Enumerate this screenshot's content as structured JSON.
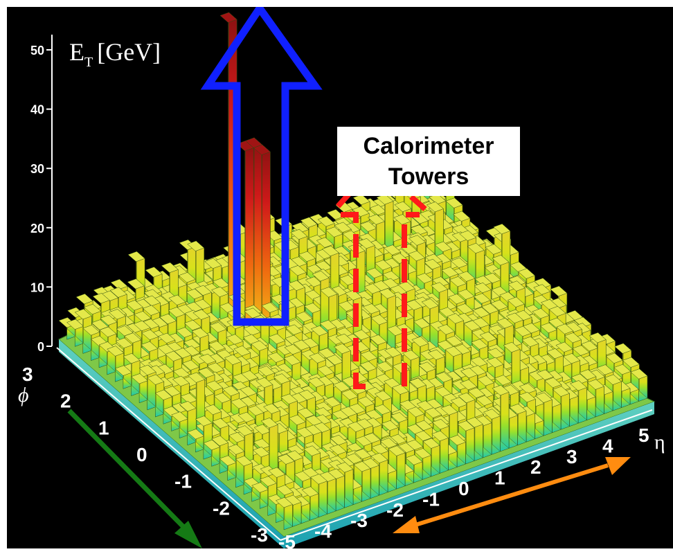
{
  "chart_data": {
    "type": "3d-bar-lego",
    "z_axis": {
      "title_symbol": "E",
      "title_sub": "T",
      "title_unit": "[GeV]",
      "ticks": [
        "50",
        "40",
        "30",
        "20",
        "10",
        "0"
      ],
      "range": [
        0,
        50
      ]
    },
    "phi_axis": {
      "title": "ϕ",
      "ticks": [
        "3",
        "2",
        "1",
        "0",
        "-1",
        "-2",
        "-3"
      ],
      "range": [
        -3,
        3
      ]
    },
    "eta_axis": {
      "title": "η",
      "ticks": [
        "-5",
        "-4",
        "-3",
        "-2",
        "-1",
        "0",
        "1",
        "2",
        "3",
        "4",
        "5"
      ],
      "range": [
        -5,
        5
      ]
    },
    "background_level": 4,
    "peaks": [
      {
        "eta": -1.5,
        "phi": 1.8,
        "value": 52
      },
      {
        "eta": -1.2,
        "phi": 1.6,
        "value": 31
      },
      {
        "eta": -1.0,
        "phi": 1.5,
        "value": 31
      }
    ],
    "annotations": {
      "callout_line1": "Calorimeter",
      "callout_line2": "Towers"
    }
  },
  "colors": {
    "background": "#000000",
    "callout_box": "#ffffff",
    "jet_arrow": "#1020ff",
    "tower_outline": "#ff1a1a",
    "phi_arrow": "#157a15",
    "eta_arrow": "#ff8c10",
    "tower_low": "#1fc8b0",
    "tower_mid": "#d8e21a",
    "tower_high": "#c01818"
  }
}
